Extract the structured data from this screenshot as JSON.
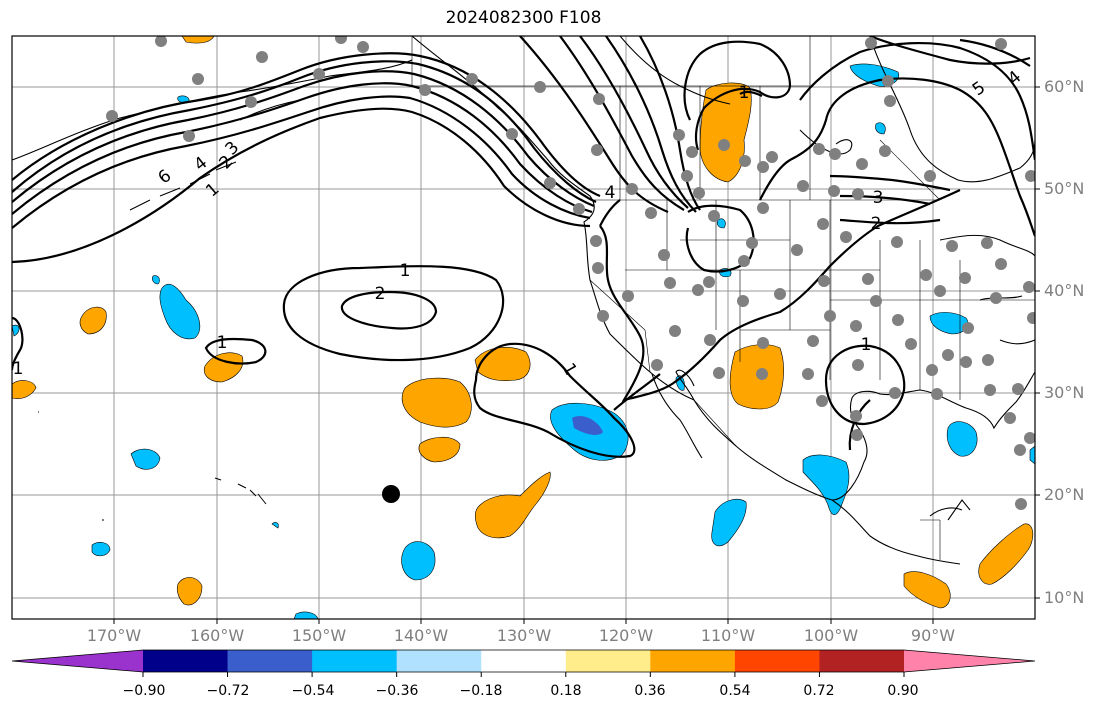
{
  "title": "2024082300 F108",
  "colorbar": {
    "ticks": [
      "−0.90",
      "−0.72",
      "−0.54",
      "−0.36",
      "−0.18",
      "0.18",
      "0.36",
      "0.54",
      "0.72",
      "0.90"
    ],
    "colors": [
      "#9a32cd",
      "#00008b",
      "#3a5fcd",
      "#00bfff",
      "#b0e2ff",
      "#ffffff",
      "#ffec8b",
      "#ffa500",
      "#ff4500",
      "#b22222",
      "#ff82ab"
    ]
  },
  "lat_labels": [
    "60°N",
    "50°N",
    "40°N",
    "30°N",
    "20°N",
    "10°N"
  ],
  "lon_labels": [
    "170°W",
    "160°W",
    "150°W",
    "140°W",
    "130°W",
    "120°W",
    "110°W",
    "100°W",
    "90°W"
  ],
  "contour_labels": [
    "6",
    "4",
    "2",
    "3",
    "1",
    "1",
    "2",
    "1",
    "1",
    "1",
    "2",
    "3",
    "5",
    "4",
    "4",
    "1",
    "1"
  ],
  "colors": {
    "neg_fill": "#00bfff",
    "neg_deep": "#3a5fcd",
    "pos_fill": "#ffa500",
    "grid": "#999999",
    "station": "#808080",
    "tick_label": "#7f7f7f"
  }
}
